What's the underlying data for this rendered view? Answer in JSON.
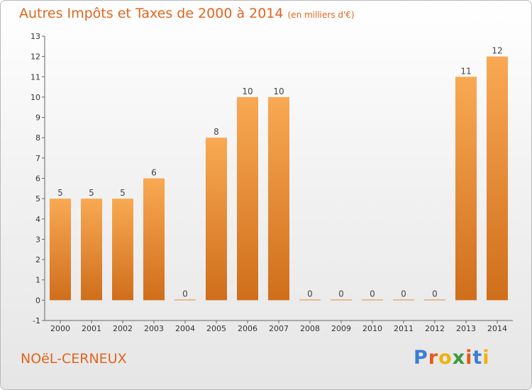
{
  "header": {
    "title": "Autres Impôts et Taxes de 2000 à 2014",
    "unit_note": "(en milliers d'€)"
  },
  "footer": {
    "place": "NOëL-CERNEUX",
    "brand": [
      "P",
      "r",
      "o",
      "x",
      "i",
      "t",
      "i"
    ]
  },
  "colors": {
    "bar_light": "#f9a953",
    "bar_dark": "#cf6e1b",
    "accent": "#e0651c",
    "brand": [
      "#3a7fd5",
      "#e8591a",
      "#f0b10f",
      "#3b9a3b",
      "#e8591a",
      "#3a7fd5",
      "#f0b10f"
    ]
  },
  "chart_data": {
    "type": "bar",
    "title": "Autres Impôts et Taxes de 2000 à 2014",
    "subtitle": "(en milliers d'€)",
    "xlabel": "",
    "ylabel": "",
    "categories": [
      "2000",
      "2001",
      "2002",
      "2003",
      "2004",
      "2005",
      "2006",
      "2007",
      "2008",
      "2009",
      "2010",
      "2011",
      "2012",
      "2013",
      "2014"
    ],
    "values": [
      5,
      5,
      5,
      6,
      0,
      8,
      10,
      10,
      0,
      0,
      0,
      0,
      0,
      11,
      12
    ],
    "ylim": [
      -1,
      13
    ],
    "yticks": [
      -1,
      0,
      1,
      2,
      3,
      4,
      5,
      6,
      7,
      8,
      9,
      10,
      11,
      12,
      13
    ],
    "grid": false,
    "legend": "none"
  }
}
